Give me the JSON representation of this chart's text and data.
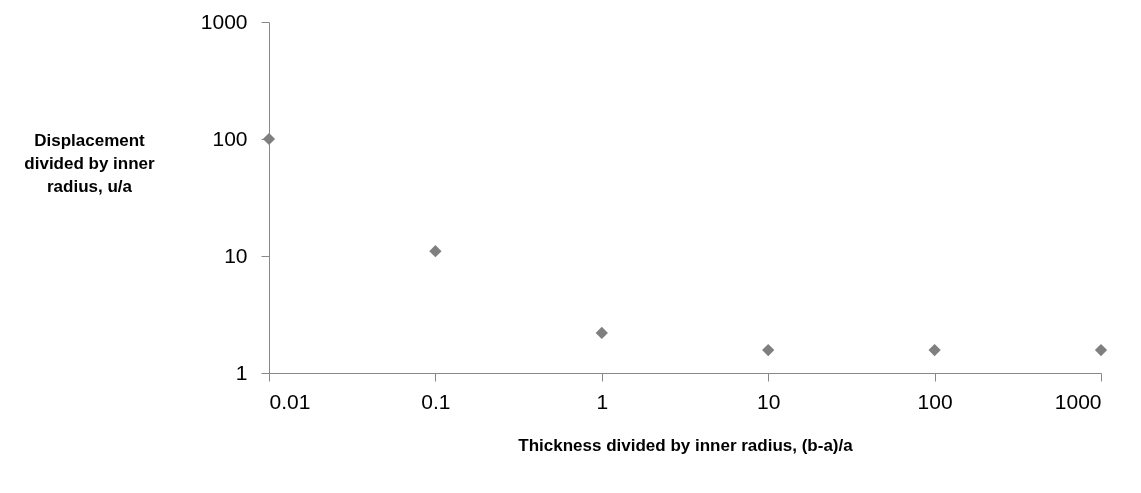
{
  "chart_data": {
    "type": "scatter",
    "xlabel": "Thickness divided by inner radius, (b-a)/a",
    "ylabel": "Displacement divided by inner radius, u/a",
    "x": [
      0.01,
      0.1,
      1,
      10,
      100,
      1000
    ],
    "series": [
      {
        "color": "#7f7f7f",
        "values": [
          100,
          11,
          2.2,
          1.57,
          1.57,
          1.57
        ]
      }
    ],
    "log": "xy",
    "xlim": [
      0.01,
      1000
    ],
    "ylim": [
      1,
      1000
    ],
    "xticks": [
      0.01,
      0.1,
      1,
      10,
      100,
      1000
    ],
    "yticks": [
      1,
      10,
      100,
      1000
    ],
    "marker": "diamond",
    "grid": false
  }
}
